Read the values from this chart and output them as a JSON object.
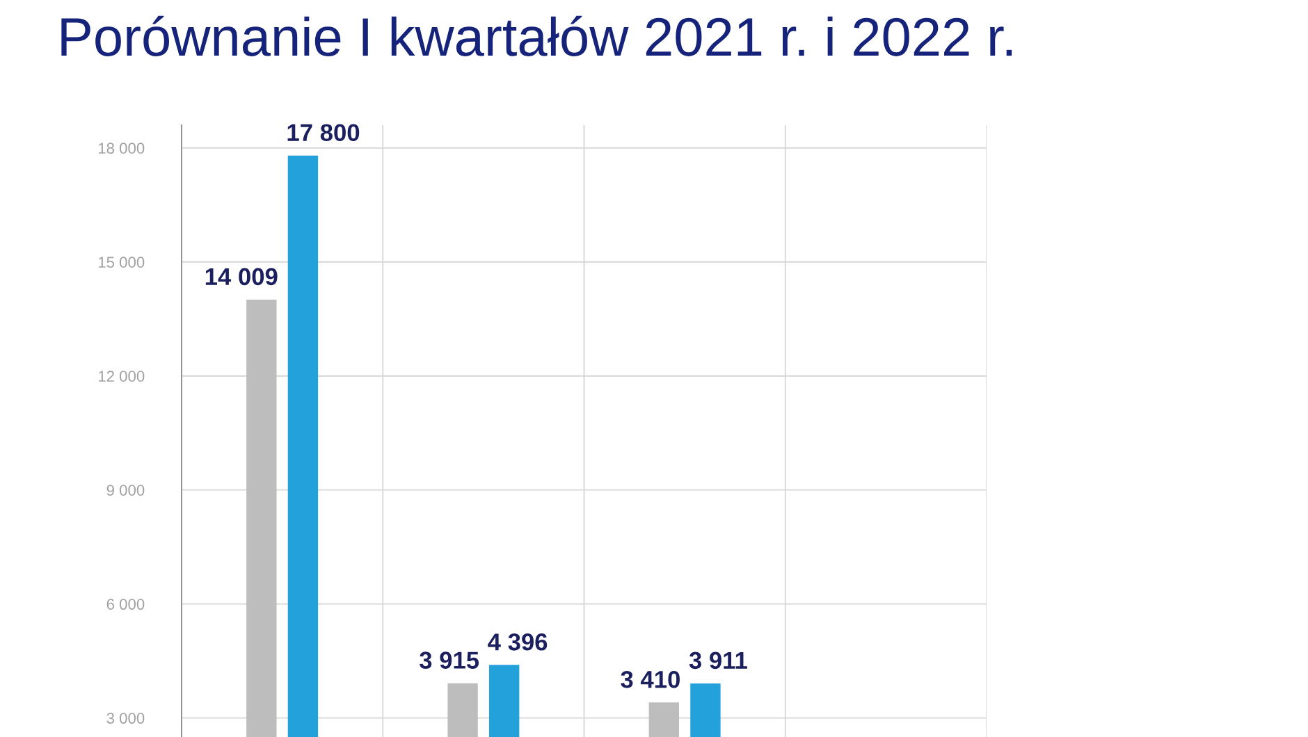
{
  "chart_data": {
    "type": "bar",
    "title": "Porównanie I kwartałów 2021 r. i 2022 r.",
    "categories": [
      null,
      null,
      null,
      null
    ],
    "series": [
      {
        "color": "#bdbdbd",
        "values": [
          14009,
          3915,
          3410,
          null
        ],
        "value_labels": [
          "14 009",
          "3 915",
          "3 410",
          null
        ]
      },
      {
        "color": "#22a1db",
        "values": [
          17800,
          4396,
          3911,
          null
        ],
        "value_labels": [
          "17 800",
          "4 396",
          "3 911",
          null
        ]
      }
    ],
    "ylim": [
      2500,
      18600
    ],
    "yticks": [
      {
        "value": 3000,
        "label": "3 000"
      },
      {
        "value": 6000,
        "label": "6 000"
      },
      {
        "value": 9000,
        "label": "9 000"
      },
      {
        "value": 12000,
        "label": "12 000"
      },
      {
        "value": 15000,
        "label": "15 000"
      },
      {
        "value": 18000,
        "label": "18 000"
      }
    ],
    "grid": true,
    "tick_labels": "y"
  }
}
